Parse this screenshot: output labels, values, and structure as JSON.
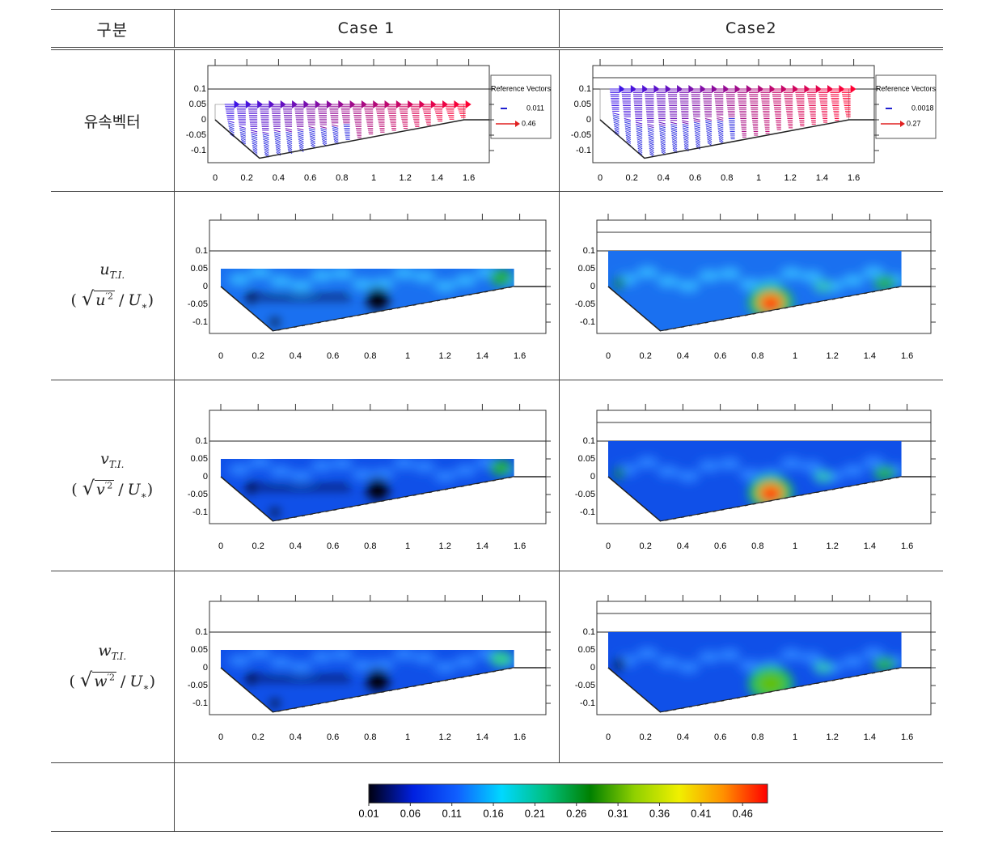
{
  "table": {
    "header": [
      "구분",
      "Case 1",
      "Case2"
    ],
    "rows": [
      {
        "label": {
          "text": "유속벡터"
        },
        "cases": [
          {
            "legend": {
              "title": "Reference Vectors",
              "small": "0.011",
              "large": "0.46"
            }
          },
          {
            "legend": {
              "title": "Reference Vectors",
              "small": "0.0018",
              "large": "0.27"
            }
          }
        ]
      },
      {
        "label": {
          "var": "u",
          "sub": "T.I.",
          "open": "(",
          "root": "√",
          "num": "u",
          "sup": "′2",
          "slash": "/",
          "den": "U",
          "den_sub": "∗",
          "close": ")"
        }
      },
      {
        "label": {
          "var": "v",
          "sub": "T.I.",
          "open": "(",
          "root": "√",
          "num": "v",
          "sup": "′2",
          "slash": "/",
          "den": "U",
          "den_sub": "∗",
          "close": ")"
        }
      },
      {
        "label": {
          "var": "w",
          "sub": "T.I.",
          "open": "(",
          "root": "√",
          "num": "w",
          "sup": "′2",
          "slash": "/",
          "den": "U",
          "den_sub": "∗",
          "close": ")"
        }
      }
    ]
  },
  "axes": {
    "xticks": [
      0,
      0.2,
      0.4,
      0.6,
      0.8,
      1,
      1.2,
      1.4,
      1.6
    ],
    "yticks": [
      0.1,
      0.05,
      0,
      -0.05,
      -0.1
    ]
  },
  "colorbar": {
    "ticks": [
      0.01,
      0.06,
      0.11,
      0.16,
      0.21,
      0.26,
      0.31,
      0.36,
      0.41,
      0.46
    ],
    "lim": [
      0.01,
      0.49
    ],
    "colors": [
      "#000010",
      "#0020e0",
      "#1060ff",
      "#00d8ff",
      "#00c080",
      "#008000",
      "#90d000",
      "#f0f000",
      "#ff9000",
      "#ff0000"
    ]
  }
}
